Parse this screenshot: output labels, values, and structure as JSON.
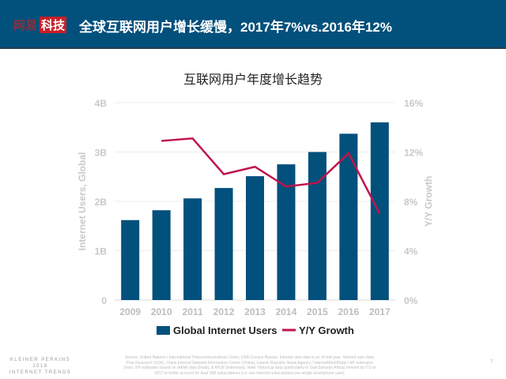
{
  "header": {
    "logo_text_1": "网易",
    "logo_text_2": "科技",
    "title": "全球互联网用户增长缓慢，2017年7%vs.2016年12%"
  },
  "chart_data": {
    "type": "bar+line",
    "title": "互联网用户年度增长趋势",
    "categories": [
      "2009",
      "2010",
      "2011",
      "2012",
      "2013",
      "2014",
      "2015",
      "2016",
      "2017"
    ],
    "series": [
      {
        "name": "Global Internet Users",
        "type": "bar",
        "axis": "left",
        "color": "#02507c",
        "values": [
          1.62,
          1.82,
          2.06,
          2.27,
          2.51,
          2.75,
          3.0,
          3.37,
          3.6
        ]
      },
      {
        "name": "Y/Y Growth",
        "type": "line",
        "axis": "right",
        "color": "#c0144c",
        "values": [
          null,
          12.9,
          13.1,
          10.2,
          10.8,
          9.2,
          9.5,
          11.9,
          7.0
        ]
      }
    ],
    "ylabel": "Internet Users, Global",
    "y2label": "Y/Y Growth",
    "ylim": [
      0,
      4
    ],
    "y2lim": [
      0,
      16
    ],
    "yticks": [
      "0",
      "1B",
      "2B",
      "3B",
      "4B"
    ],
    "y2ticks": [
      "0%",
      "4%",
      "8%",
      "12%",
      "16%"
    ],
    "grid": true,
    "legend": "bottom"
  },
  "footer": {
    "brand_line1": "KLEINER PERKINS",
    "brand_line2": "2018",
    "brand_line3": "INTERNET TRENDS",
    "source": "Source: United Nations / International Telecommunications Union, USA Census Bureau. Internet user data is as of mid-year. Internet user data: Pew Research (USA), China Internet Network Information Center (China), Islamic Republic News Agency / InternetWorldStats / KP estimates (Iran), KP estimates based on IAMAI data (India), & APJII (Indonesia). Note: Historical data (particularly in Sub-Saharan Africa) revised by ITU in 2017 to better account for dual SIM subscriptions (i.e. two Internet subscriptions per single smartphone user).",
    "page": "7"
  }
}
